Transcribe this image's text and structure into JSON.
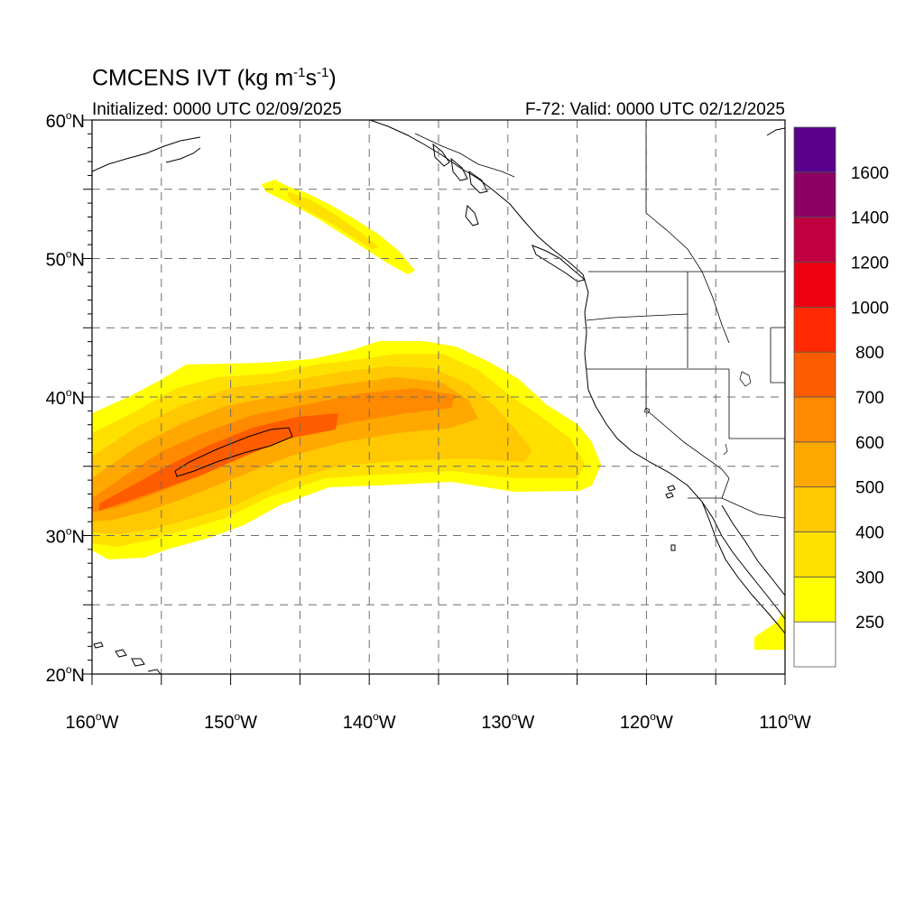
{
  "title": {
    "main": "CMCENS IVT (kg m",
    "exp1": "-1",
    "mid": "s",
    "exp2": "-1",
    "end": ")"
  },
  "subtitle_left": "Initialized: 0000 UTC 02/09/2025",
  "subtitle_right": "F-72: Valid: 0000 UTC 02/12/2025",
  "map": {
    "lon_range": [
      -160,
      -110
    ],
    "lat_range": [
      20,
      60
    ],
    "lat_labels": [
      {
        "value": 20,
        "deg": "20",
        "hemi": "N"
      },
      {
        "value": 30,
        "deg": "30",
        "hemi": "N"
      },
      {
        "value": 40,
        "deg": "40",
        "hemi": "N"
      },
      {
        "value": 50,
        "deg": "50",
        "hemi": "N"
      },
      {
        "value": 60,
        "deg": "60",
        "hemi": "N"
      }
    ],
    "lon_labels": [
      {
        "value": -160,
        "deg": "160",
        "hemi": "W"
      },
      {
        "value": -150,
        "deg": "150",
        "hemi": "W"
      },
      {
        "value": -140,
        "deg": "140",
        "hemi": "W"
      },
      {
        "value": -130,
        "deg": "130",
        "hemi": "W"
      },
      {
        "value": -120,
        "deg": "120",
        "hemi": "W"
      },
      {
        "value": -110,
        "deg": "110",
        "hemi": "W"
      }
    ],
    "grid_spacing_deg": 5,
    "grid_style": "dashed"
  },
  "colorbar": {
    "labels": [
      "250",
      "300",
      "400",
      "500",
      "600",
      "700",
      "800",
      "1000",
      "1200",
      "1400",
      "1600"
    ],
    "colors": [
      "#ffffff",
      "#ffff00",
      "#ffe100",
      "#ffc800",
      "#ffa800",
      "#ff8a00",
      "#ff5c00",
      "#ff2a00",
      "#ee0010",
      "#c00040",
      "#8c0064",
      "#5a008c"
    ]
  }
}
